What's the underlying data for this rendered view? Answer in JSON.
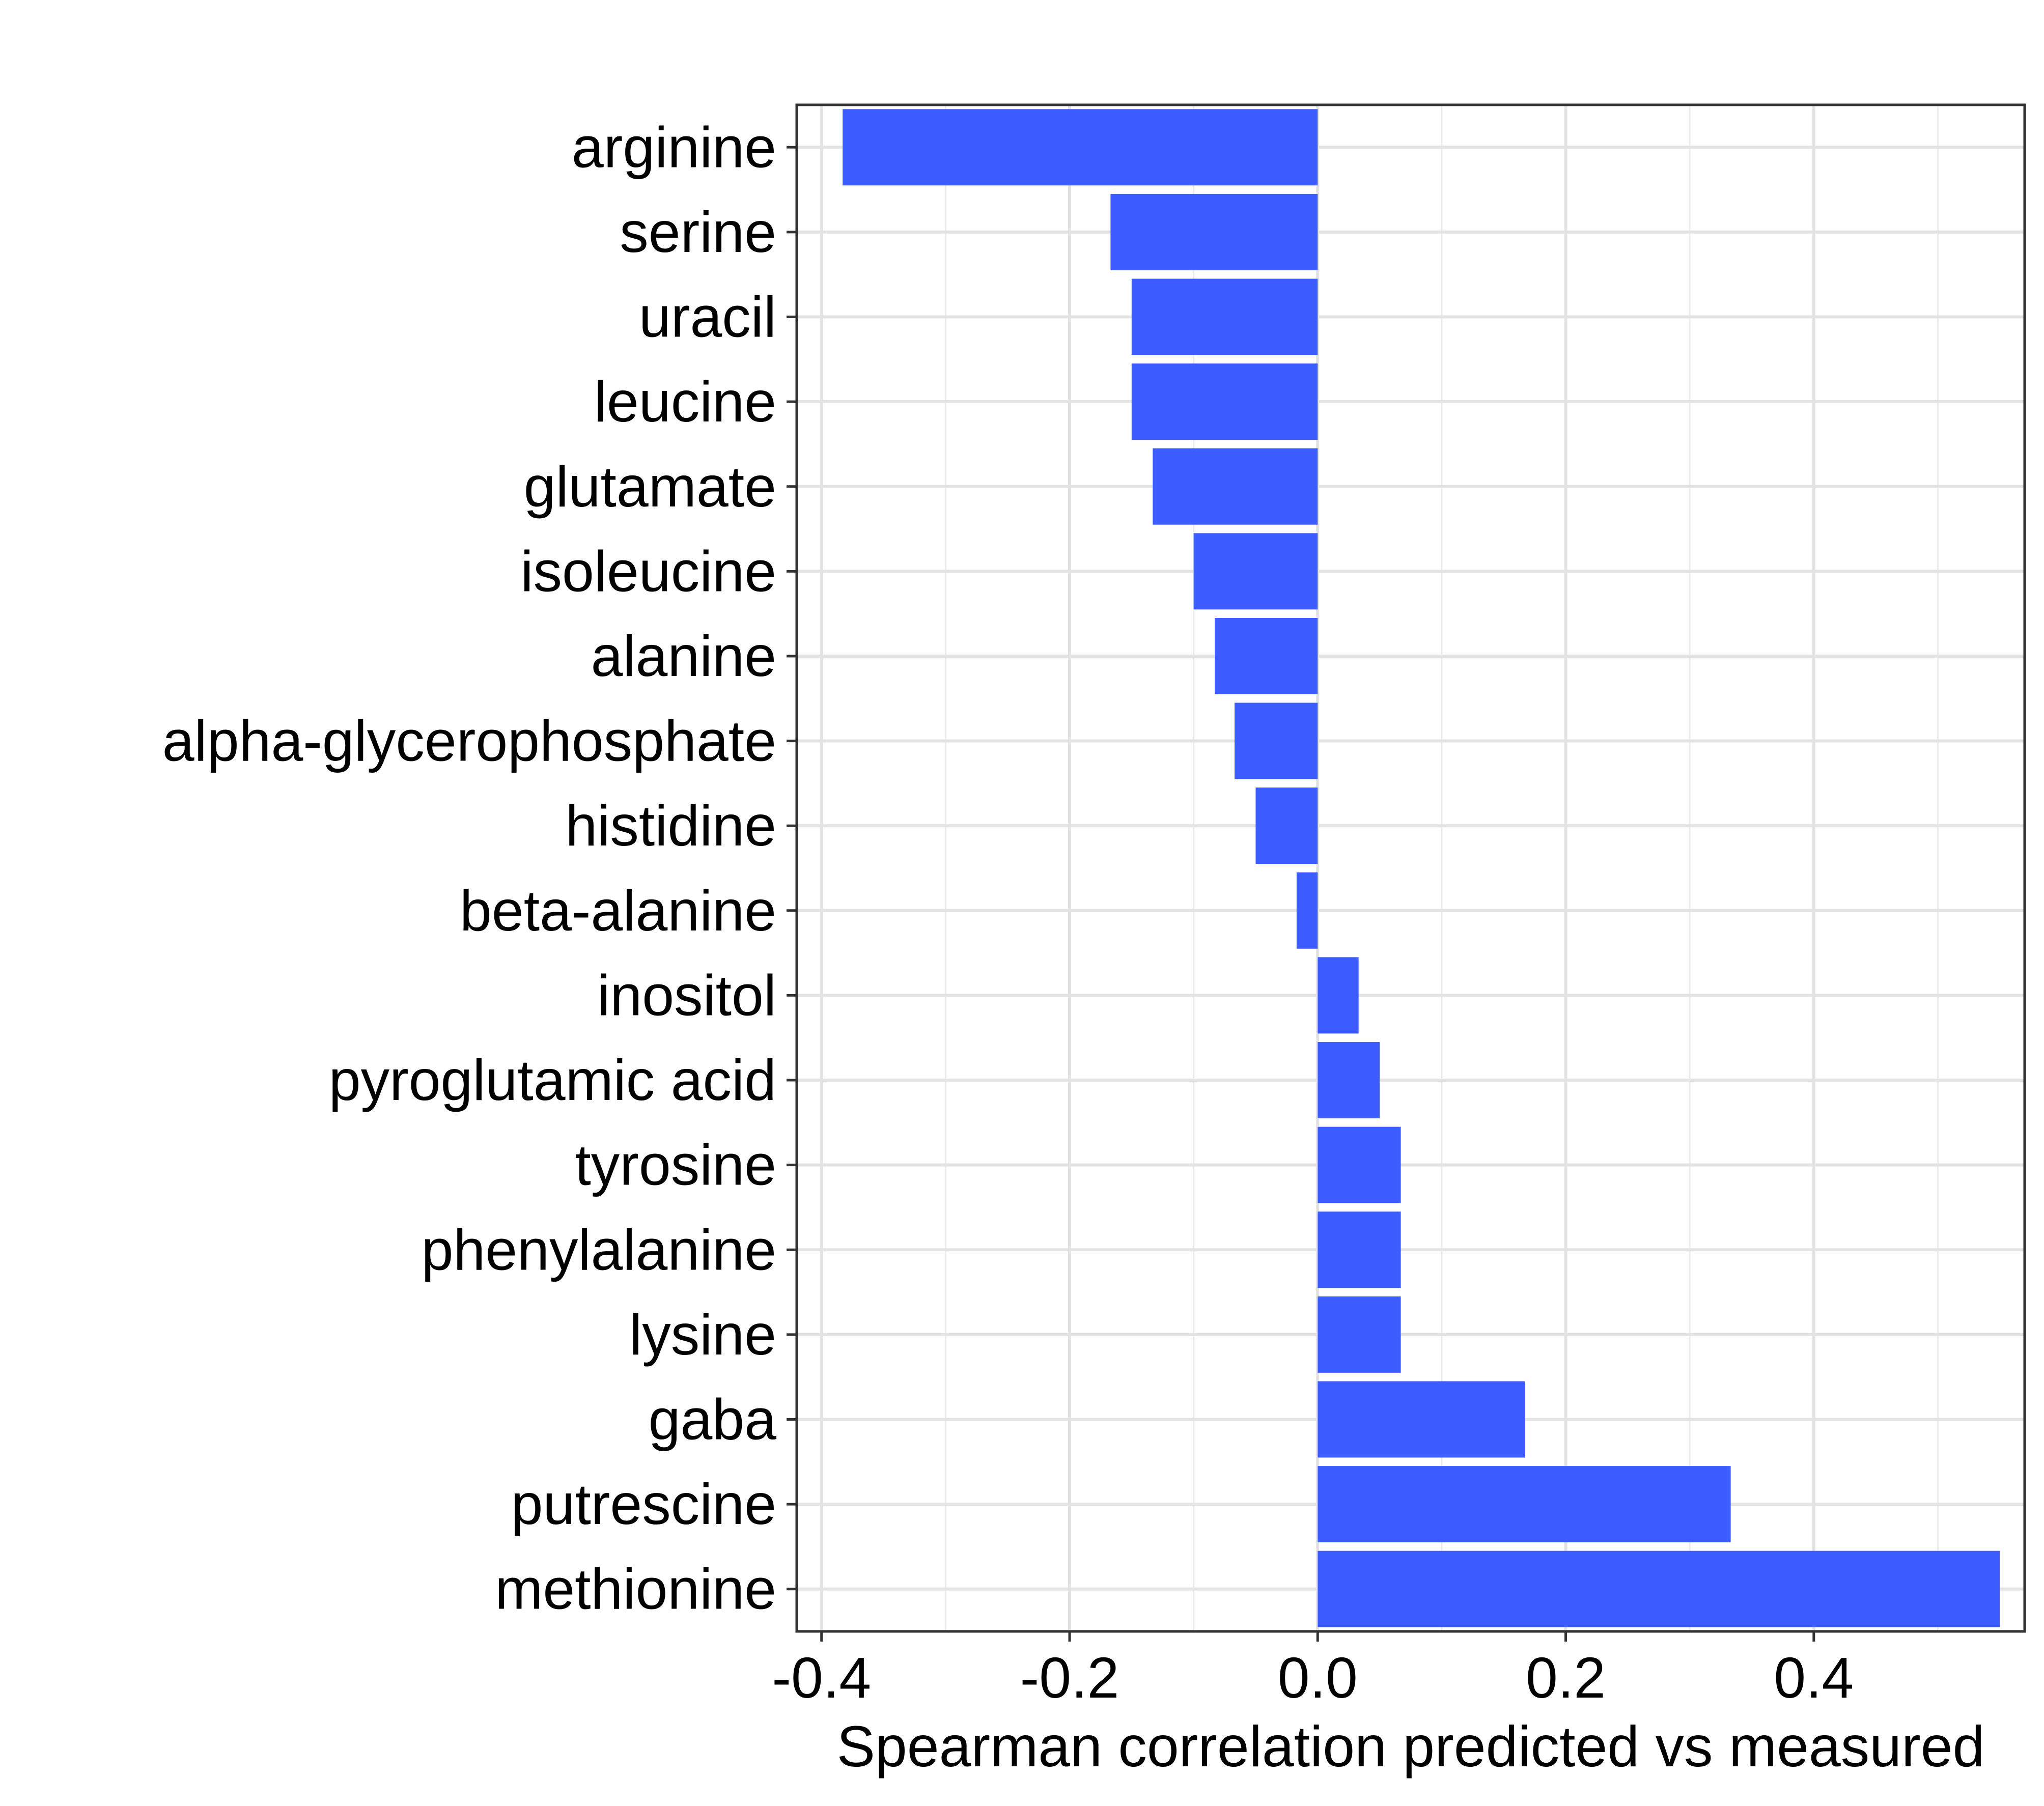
{
  "chart_data": {
    "type": "bar",
    "orientation": "horizontal",
    "title": "",
    "xlabel": "Spearman correlation predicted vs measured",
    "ylabel": "",
    "xlim": [
      -0.42,
      0.57
    ],
    "xticks": [
      -0.4,
      -0.2,
      0.0,
      0.2,
      0.4
    ],
    "xtick_labels": [
      "-0.4",
      "-0.2",
      "0.0",
      "0.2",
      "0.4"
    ],
    "grid": true,
    "legend": "none",
    "bar_color": "#3c5cff",
    "categories": [
      "arginine",
      "serine",
      "uracil",
      "leucine",
      "glutamate",
      "isoleucine",
      "alanine",
      "alpha-glycerophosphate",
      "histidine",
      "beta-alanine",
      "inositol",
      "pyroglutamic acid",
      "tyrosine",
      "phenylalanine",
      "lysine",
      "gaba",
      "putrescine",
      "methionine"
    ],
    "values": [
      -0.383,
      -0.167,
      -0.15,
      -0.15,
      -0.133,
      -0.1,
      -0.083,
      -0.067,
      -0.05,
      -0.017,
      0.033,
      0.05,
      0.067,
      0.067,
      0.067,
      0.167,
      0.333,
      0.55
    ]
  }
}
